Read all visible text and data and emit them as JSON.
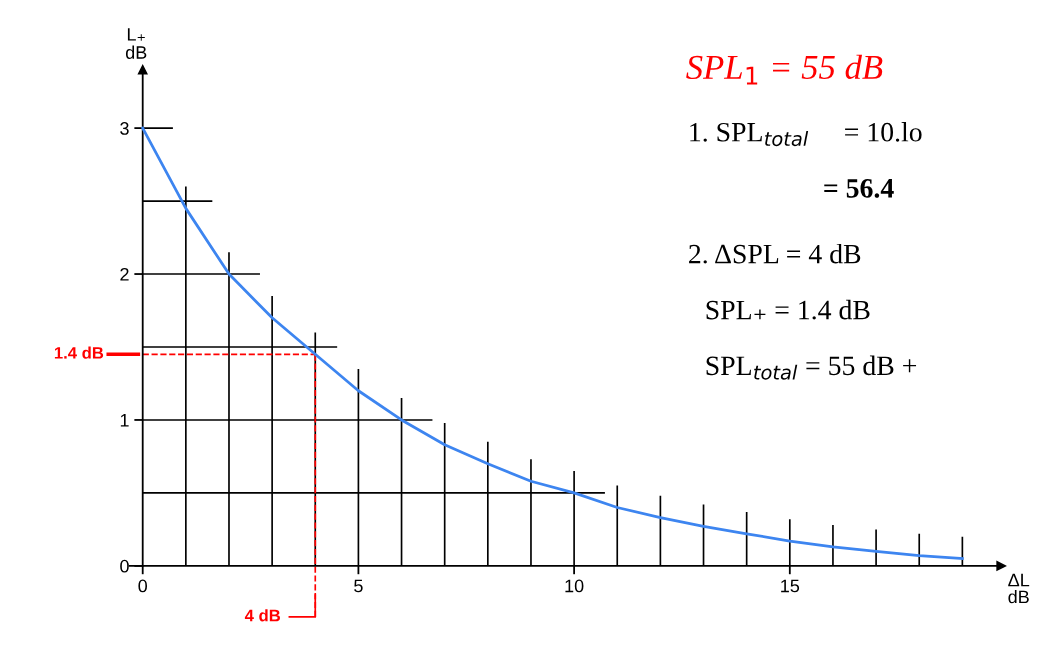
{
  "chart_data": {
    "type": "line",
    "title": "SPL$_{1}$ = 55 dB",
    "xlabel": "ΔL\ndB",
    "ylabel": "L₊\ndB",
    "x": [
      0,
      1,
      2,
      3,
      4,
      5,
      6,
      7,
      8,
      9,
      10,
      11,
      12,
      13,
      14,
      15,
      16,
      17,
      18,
      19
    ],
    "series": [
      {
        "color": "#3d85f0",
        "values": [
          3.0,
          2.45,
          2.0,
          1.7,
          1.45,
          1.2,
          1.0,
          0.83,
          0.7,
          0.58,
          0.5,
          0.4,
          0.33,
          0.27,
          0.22,
          0.17,
          0.13,
          0.1,
          0.07,
          0.05
        ]
      }
    ],
    "xlim": [
      -0.3,
      19.9
    ],
    "ylim": [
      0,
      3.4
    ],
    "xticks": [
      0,
      {
        "value": 1,
        "label": null
      },
      {
        "value": 2,
        "label": null
      },
      {
        "value": 3,
        "label": null
      },
      {
        "value": 4,
        "label": null
      },
      5,
      {
        "value": 6,
        "label": null
      },
      {
        "value": 7,
        "label": null
      },
      {
        "value": 8,
        "label": null
      },
      {
        "value": 9,
        "label": null
      },
      10,
      {
        "value": 11,
        "label": null
      },
      {
        "value": 12,
        "label": null
      },
      {
        "value": 13,
        "label": null
      },
      {
        "value": 14,
        "label": null
      },
      15,
      {
        "value": 16,
        "label": null
      },
      {
        "value": 17,
        "label": null
      },
      {
        "value": 18,
        "label": null
      },
      {
        "value": 19,
        "label": null
      }
    ],
    "yticks": [
      0,
      {
        "value": 0.5,
        "label": null
      },
      1,
      {
        "value": 1.5,
        "label": null
      },
      2,
      {
        "value": 2.5,
        "label": null
      },
      3
    ],
    "grid": true,
    "marker": "none",
    "line_style": "solid",
    "ref_lines": [
      {
        "axis": "y",
        "value": 1.45,
        "label": "1.4 dB",
        "color": "#ff0000",
        "line_style": "dashed"
      },
      {
        "axis": "x",
        "value": 4,
        "label": "4 dB",
        "color": "#ff0000",
        "line_style": "dashed"
      }
    ],
    "annotations": [
      "1. SPL$_{total}$     = 10.lo",
      "= 56.4",
      "2. ΔSPL = 4 dB",
      "SPL₊ = 1.4 dB",
      "SPL$_{total}$ = 55 dB +"
    ]
  }
}
